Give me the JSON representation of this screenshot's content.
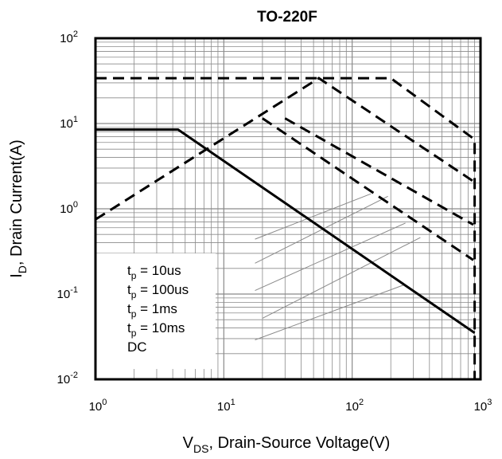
{
  "chart_data": {
    "type": "line",
    "title": "TO-220F",
    "xlabel": {
      "main": "V",
      "sub": "DS",
      "rest": ", Drain-Source Voltage(V)"
    },
    "ylabel": {
      "main": "I",
      "sub": "D",
      "rest": ", Drain Current(A)"
    },
    "x_scale": "log",
    "y_scale": "log",
    "xlim": [
      1,
      1000
    ],
    "ylim": [
      0.01,
      100
    ],
    "x_ticks": [
      {
        "base": "10",
        "exp": "0"
      },
      {
        "base": "10",
        "exp": "1"
      },
      {
        "base": "10",
        "exp": "2"
      },
      {
        "base": "10",
        "exp": "3"
      }
    ],
    "y_ticks": [
      {
        "base": "10",
        "exp": "-2"
      },
      {
        "base": "10",
        "exp": "-1"
      },
      {
        "base": "10",
        "exp": "0"
      },
      {
        "base": "10",
        "exp": "1"
      },
      {
        "base": "10",
        "exp": "2"
      }
    ],
    "grid": true,
    "legend_position": "bottom-left",
    "series": [
      {
        "name": {
          "main": "t",
          "sub": "p",
          "rest": " = 10us"
        },
        "style": "dashed",
        "points": [
          [
            1,
            34
          ],
          [
            50,
            34
          ],
          [
            200,
            34
          ],
          [
            900,
            6.5
          ],
          [
            900,
            0.01
          ]
        ]
      },
      {
        "name": {
          "main": "t",
          "sub": "p",
          "rest": " = 100us"
        },
        "style": "dashed",
        "points": [
          [
            1,
            0.75
          ],
          [
            55,
            34
          ],
          [
            880,
            2.1
          ]
        ]
      },
      {
        "name": {
          "main": "t",
          "sub": "p",
          "rest": " = 1ms"
        },
        "style": "dashed",
        "points": [
          [
            30,
            11.5
          ],
          [
            880,
            0.65
          ]
        ]
      },
      {
        "name": {
          "main": "t",
          "sub": "p",
          "rest": " = 10ms"
        },
        "style": "dashed",
        "points": [
          [
            20,
            11.5
          ],
          [
            880,
            0.25
          ]
        ]
      },
      {
        "name": {
          "main": "DC",
          "sub": "",
          "rest": ""
        },
        "style": "solid",
        "points": [
          [
            1,
            8.5
          ],
          [
            4.4,
            8.5
          ],
          [
            900,
            0.035
          ]
        ]
      }
    ],
    "legend_leaders": [
      {
        "from": [
          17.5,
          0.44
        ],
        "to": [
          140,
          1.5
        ]
      },
      {
        "from": [
          17.5,
          0.23
        ],
        "to": [
          190,
          1.4
        ]
      },
      {
        "from": [
          17.5,
          0.11
        ],
        "to": [
          260,
          0.68
        ]
      },
      {
        "from": [
          20,
          0.052
        ],
        "to": [
          340,
          0.46
        ]
      },
      {
        "from": [
          17.5,
          0.029
        ],
        "to": [
          260,
          0.13
        ]
      }
    ]
  }
}
